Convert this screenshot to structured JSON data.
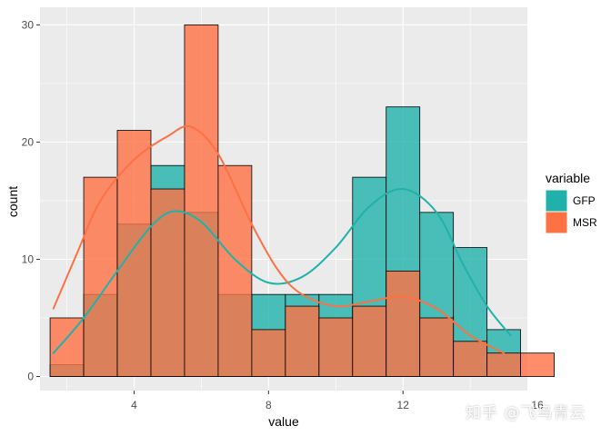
{
  "chart_data": {
    "type": "histogram",
    "title": "",
    "xlabel": "value",
    "ylabel": "count",
    "xlim": [
      1.2,
      15.7
    ],
    "ylim": [
      -1.2,
      31.5
    ],
    "x_ticks": [
      4,
      8,
      12,
      16
    ],
    "x_tick_labels": [
      "4",
      "8",
      "12",
      "16"
    ],
    "y_ticks": [
      0,
      10,
      20,
      30
    ],
    "y_tick_labels": [
      "0",
      "10",
      "20",
      "30"
    ],
    "grid": true,
    "background": "#EBEBEB",
    "bin_width": 1,
    "bins_start": [
      1.5,
      2.5,
      3.5,
      4.5,
      5.5,
      6.5,
      7.5,
      8.5,
      9.5,
      10.5,
      11.5,
      12.5,
      13.5,
      14.5,
      15.5
    ],
    "legend": {
      "title": "variable",
      "position": "right"
    },
    "series": [
      {
        "name": "GFP",
        "color": "#20B2AA",
        "counts": [
          1,
          7,
          13,
          18,
          14,
          7,
          7,
          7,
          7,
          17,
          23,
          14,
          11,
          4,
          0
        ],
        "density_curve": [
          [
            1.6,
            2.0
          ],
          [
            2.5,
            5.0
          ],
          [
            3.5,
            9.0
          ],
          [
            4.5,
            12.8
          ],
          [
            5.2,
            14.1
          ],
          [
            6.0,
            13.2
          ],
          [
            7.0,
            10.0
          ],
          [
            8.0,
            8.0
          ],
          [
            9.0,
            8.5
          ],
          [
            10.0,
            11.0
          ],
          [
            11.0,
            14.5
          ],
          [
            12.0,
            16.0
          ],
          [
            13.0,
            14.0
          ],
          [
            13.8,
            9.5
          ],
          [
            14.5,
            6.0
          ],
          [
            15.2,
            3.5
          ]
        ]
      },
      {
        "name": "MSR",
        "color": "#FF7043",
        "counts": [
          5,
          17,
          21,
          16,
          30,
          18,
          4,
          6,
          5,
          6,
          9,
          5,
          3,
          2,
          2
        ],
        "density_curve": [
          [
            1.6,
            5.8
          ],
          [
            2.3,
            10.5
          ],
          [
            3.0,
            15.0
          ],
          [
            4.0,
            18.5
          ],
          [
            5.0,
            20.5
          ],
          [
            5.7,
            21.3
          ],
          [
            6.5,
            19.0
          ],
          [
            7.5,
            13.0
          ],
          [
            8.3,
            9.0
          ],
          [
            9.0,
            7.0
          ],
          [
            10.0,
            6.0
          ],
          [
            11.0,
            6.4
          ],
          [
            12.0,
            6.8
          ],
          [
            13.0,
            5.8
          ],
          [
            14.0,
            3.5
          ],
          [
            15.0,
            2.0
          ]
        ]
      }
    ]
  },
  "watermark": "知乎 @飞鸟青云"
}
